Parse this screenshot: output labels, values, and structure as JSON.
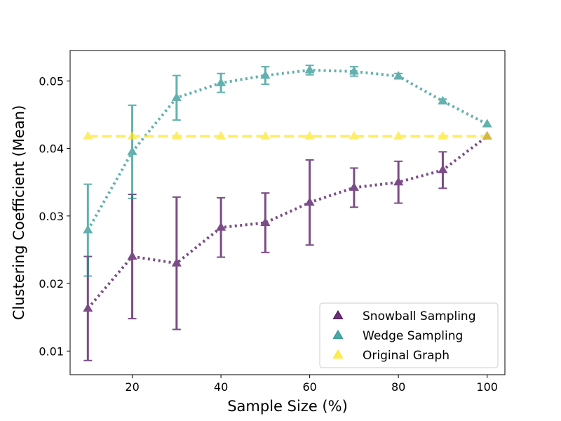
{
  "chart_data": {
    "type": "line",
    "xlabel": "Sample Size (%)",
    "ylabel": "Clustering Coefficient (Mean)",
    "xlim": [
      6,
      104
    ],
    "ylim": [
      0.0065,
      0.0545
    ],
    "xticks": [
      20,
      40,
      60,
      80,
      100
    ],
    "yticks": [
      0.01,
      0.02,
      0.03,
      0.04,
      0.05
    ],
    "ytick_labels": [
      "0.01",
      "0.02",
      "0.03",
      "0.04",
      "0.05"
    ],
    "grid": false,
    "legend_position": "bottom-right",
    "x": [
      10,
      20,
      30,
      40,
      50,
      60,
      70,
      80,
      90,
      100
    ],
    "series": [
      {
        "name": "Snowball Sampling",
        "color": "#440154",
        "line_style": "dotted",
        "marker": "triangle-up",
        "values": [
          0.0163,
          0.024,
          0.023,
          0.0283,
          0.029,
          0.032,
          0.0342,
          0.035,
          0.0368,
          0.0418
        ],
        "error": [
          0.0077,
          0.0092,
          0.0098,
          0.0044,
          0.0044,
          0.0063,
          0.0029,
          0.0031,
          0.0027,
          0.0
        ]
      },
      {
        "name": "Wedge Sampling",
        "color": "#21918c",
        "line_style": "dotted",
        "marker": "triangle-up",
        "values": [
          0.0279,
          0.0395,
          0.0475,
          0.0497,
          0.0508,
          0.0516,
          0.0514,
          0.0507,
          0.047,
          0.0436
        ],
        "error": [
          0.0068,
          0.0069,
          0.0033,
          0.0014,
          0.0013,
          0.0007,
          0.0007,
          0.0004,
          0.0003,
          0.0
        ]
      },
      {
        "name": "Original Graph",
        "color": "#fde725",
        "line_style": "dashed",
        "marker": "triangle-up",
        "values": [
          0.0418,
          0.0418,
          0.0418,
          0.0418,
          0.0418,
          0.0418,
          0.0418,
          0.0418,
          0.0418,
          0.0418
        ],
        "error": [
          0,
          0,
          0,
          0,
          0,
          0,
          0,
          0,
          0,
          0
        ]
      }
    ]
  }
}
